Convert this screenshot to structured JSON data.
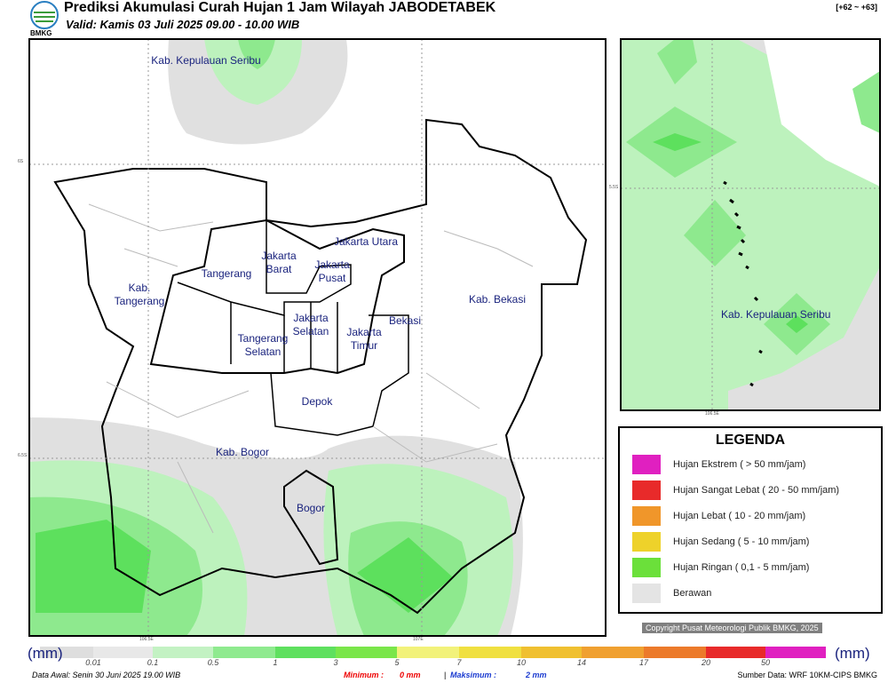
{
  "header": {
    "title": "Prediksi Akumulasi Curah Hujan 1 Jam Wilayah JABODETABEK",
    "valid": "Valid: Kamis 03 Juli 2025 09.00 - 10.00 WIB",
    "logo": "BMKG",
    "code": "[+62 ~ +63]"
  },
  "main_map": {
    "regions": [
      [
        "Kab. Kepulauan Seribu"
      ],
      [
        "Jakarta Utara"
      ],
      [
        "Jakarta",
        "Barat"
      ],
      [
        "Jakarta",
        "Pusat"
      ],
      [
        "Tangerang"
      ],
      [
        "Kab.",
        "Tangerang"
      ],
      [
        "Kab. Bekasi"
      ],
      [
        "Jakarta",
        "Selatan"
      ],
      [
        "Bekasi"
      ],
      [
        "Jakarta",
        "Timur"
      ],
      [
        "Tangerang",
        "Selatan"
      ],
      [
        "Depok"
      ],
      [
        "Kab. Bogor"
      ],
      [
        "Bogor"
      ]
    ],
    "lat_labels": [
      "6S",
      "6.5S"
    ],
    "lon_labels": [
      "106.5E",
      "107E"
    ]
  },
  "inset_map": {
    "region": "Kab. Kepulauan Seribu",
    "lat_labels": [
      "5.5S"
    ],
    "lon_labels": [
      "106.5E"
    ]
  },
  "legend": {
    "title": "LEGENDA",
    "items": [
      "Hujan Ekstrem ( > 50 mm/jam)",
      "Hujan Sangat Lebat ( 20 - 50 mm/jam)",
      "Hujan Lebat ( 10 - 20 mm/jam)",
      "Hujan Sedang ( 5 - 10 mm/jam)",
      "Hujan Ringan ( 0,1 - 5 mm/jam)",
      "Berawan"
    ]
  },
  "copyright": "Copyright Pusat Meteorologi Publik BMKG, 2025",
  "colorbar": {
    "unit_left": "(mm)",
    "unit_right": "(mm)",
    "ticks": [
      "0.01",
      "0.1",
      "0.5",
      "1",
      "3",
      "5",
      "7",
      "10",
      "14",
      "17",
      "20",
      "50"
    ]
  },
  "footer": {
    "data_awal": "Data Awal: Senin 30 Juni 2025 19.00 WIB",
    "minimum_label": "Minimum :",
    "minimum_value": "0 mm",
    "separator": "|",
    "maximum_label": "Maksimum :",
    "maximum_value": "2 mm",
    "source": "Sumber Data: WRF 10KM-CIPS BMKG"
  }
}
